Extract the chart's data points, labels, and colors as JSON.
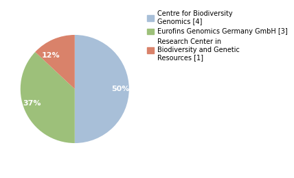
{
  "slices": [
    50,
    37,
    13
  ],
  "labels": [
    "50%",
    "37%",
    "12%"
  ],
  "colors": [
    "#a8bfd8",
    "#9dc07a",
    "#d9826a"
  ],
  "legend_labels": [
    "Centre for Biodiversity\nGenomics [4]",
    "Eurofins Genomics Germany GmbH [3]",
    "Research Center in\nBiodiversity and Genetic\nResources [1]"
  ],
  "label_fontsize": 8,
  "legend_fontsize": 7,
  "background_color": "#ffffff",
  "startangle": 90,
  "pct_distance": 0.68
}
